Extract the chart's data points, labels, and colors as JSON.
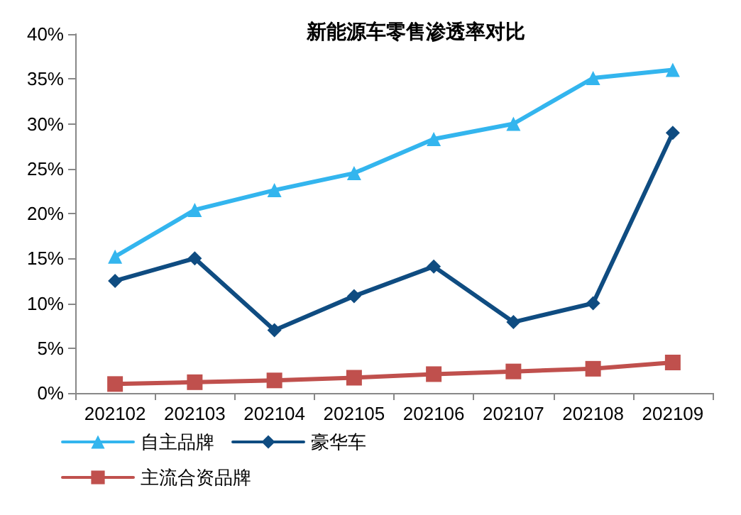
{
  "chart_data": {
    "type": "line",
    "title": "新能源车零售渗透率对比",
    "categories": [
      "202102",
      "202103",
      "202104",
      "202105",
      "202106",
      "202107",
      "202108",
      "202109"
    ],
    "series": [
      {
        "name": "自主品牌",
        "color": "#33b5ee",
        "marker": "triangle",
        "values": [
          15.2,
          20.4,
          22.6,
          24.5,
          28.3,
          30,
          35.1,
          36
        ]
      },
      {
        "name": "豪华车",
        "color": "#0f4c81",
        "marker": "diamond",
        "values": [
          12.5,
          15,
          7,
          10.8,
          14.1,
          7.9,
          10,
          29
        ]
      },
      {
        "name": "主流合资品牌",
        "color": "#c0504d",
        "marker": "square",
        "values": [
          1,
          1.2,
          1.4,
          1.7,
          2.1,
          2.4,
          2.7,
          3.4
        ]
      }
    ],
    "ylim": [
      0,
      40
    ],
    "yticks": [
      {
        "value": 0,
        "label": "0%"
      },
      {
        "value": 5,
        "label": "5%"
      },
      {
        "value": 10,
        "label": "10%"
      },
      {
        "value": 15,
        "label": "15%"
      },
      {
        "value": 20,
        "label": "20%"
      },
      {
        "value": 25,
        "label": "25%"
      },
      {
        "value": 30,
        "label": "30%"
      },
      {
        "value": 35,
        "label": "35%"
      },
      {
        "value": 40,
        "label": "40%"
      }
    ],
    "grid": false,
    "legend": "bottom",
    "line_style": "solid"
  }
}
